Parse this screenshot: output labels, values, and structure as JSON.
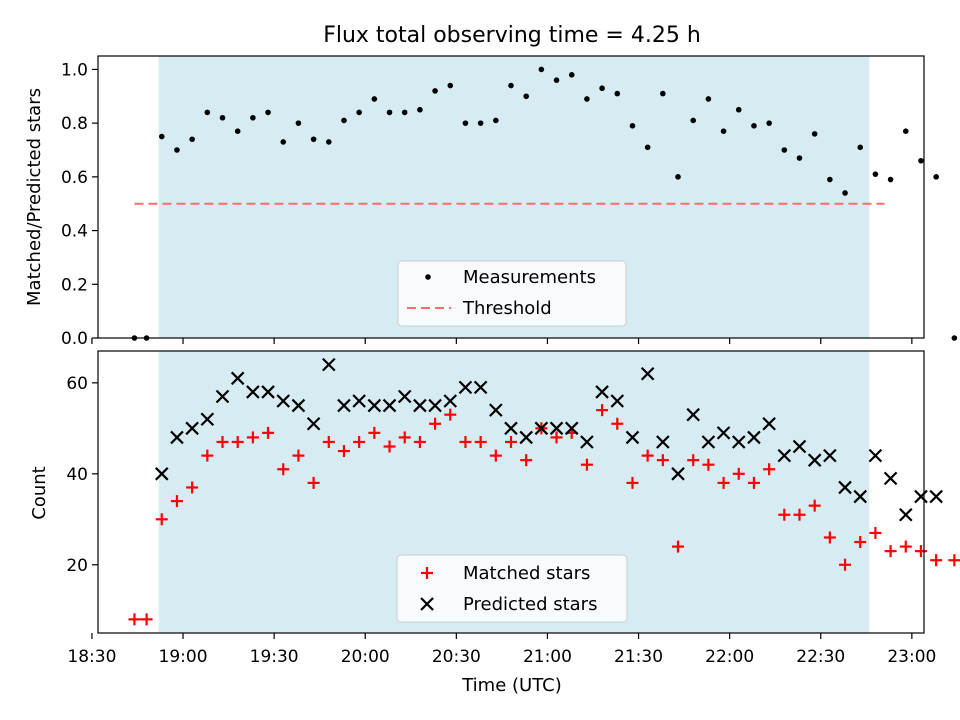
{
  "colors": {
    "shade": "#add8e6",
    "threshold": "#ff6b6b",
    "matched": "#ff0000",
    "predicted": "#000000",
    "measurement": "#000000"
  },
  "chart_data": [
    {
      "type": "scatter",
      "title": "Flux total observing time = 4.25 h",
      "ylabel": "Matched/Predicted stars",
      "xlabel": "",
      "ylim": [
        0,
        1.05
      ],
      "xlim_minutes": [
        1112,
        1384
      ],
      "yticks": [
        {
          "v": 0.0,
          "label": "0.0"
        },
        {
          "v": 0.2,
          "label": "0.2"
        },
        {
          "v": 0.4,
          "label": "0.4"
        },
        {
          "v": 0.6,
          "label": "0.6"
        },
        {
          "v": 0.8,
          "label": "0.8"
        },
        {
          "v": 1.0,
          "label": "1.0"
        }
      ],
      "shaded_region_minutes": [
        1132,
        1366
      ],
      "threshold": {
        "y": 0.5,
        "x_range_minutes": [
          1124,
          1371
        ]
      },
      "legend": {
        "position": "bottom-center",
        "entries": [
          "Measurements",
          "Threshold"
        ]
      },
      "series": [
        {
          "name": "Measurements",
          "points": [
            [
              1124,
              0.0
            ],
            [
              1128,
              0.0
            ],
            [
              1133,
              0.75
            ],
            [
              1138,
              0.7
            ],
            [
              1143,
              0.74
            ],
            [
              1148,
              0.84
            ],
            [
              1153,
              0.82
            ],
            [
              1158,
              0.77
            ],
            [
              1163,
              0.82
            ],
            [
              1168,
              0.84
            ],
            [
              1173,
              0.73
            ],
            [
              1178,
              0.8
            ],
            [
              1183,
              0.74
            ],
            [
              1188,
              0.73
            ],
            [
              1193,
              0.81
            ],
            [
              1198,
              0.84
            ],
            [
              1203,
              0.89
            ],
            [
              1208,
              0.84
            ],
            [
              1213,
              0.84
            ],
            [
              1218,
              0.85
            ],
            [
              1223,
              0.92
            ],
            [
              1228,
              0.94
            ],
            [
              1233,
              0.8
            ],
            [
              1238,
              0.8
            ],
            [
              1243,
              0.81
            ],
            [
              1248,
              0.94
            ],
            [
              1253,
              0.9
            ],
            [
              1258,
              1.0
            ],
            [
              1263,
              0.96
            ],
            [
              1268,
              0.98
            ],
            [
              1273,
              0.89
            ],
            [
              1278,
              0.93
            ],
            [
              1283,
              0.91
            ],
            [
              1288,
              0.79
            ],
            [
              1293,
              0.71
            ],
            [
              1298,
              0.91
            ],
            [
              1303,
              0.6
            ],
            [
              1308,
              0.81
            ],
            [
              1313,
              0.89
            ],
            [
              1318,
              0.77
            ],
            [
              1323,
              0.85
            ],
            [
              1328,
              0.79
            ],
            [
              1333,
              0.8
            ],
            [
              1338,
              0.7
            ],
            [
              1343,
              0.67
            ],
            [
              1348,
              0.76
            ],
            [
              1353,
              0.59
            ],
            [
              1358,
              0.54
            ],
            [
              1363,
              0.71
            ],
            [
              1368,
              0.61
            ],
            [
              1373,
              0.59
            ],
            [
              1378,
              0.77
            ],
            [
              1383,
              0.66
            ],
            [
              1388,
              0.6
            ],
            [
              1394,
              0.0
            ]
          ]
        }
      ]
    },
    {
      "type": "scatter",
      "title": "",
      "ylabel": "Count",
      "xlabel": "Time (UTC)",
      "ylim": [
        5,
        67
      ],
      "xlim_minutes": [
        1112,
        1384
      ],
      "yticks": [
        {
          "v": 20,
          "label": "20"
        },
        {
          "v": 40,
          "label": "40"
        },
        {
          "v": 60,
          "label": "60"
        }
      ],
      "xticks": [
        {
          "v": 1110,
          "label": "18:30"
        },
        {
          "v": 1140,
          "label": "19:00"
        },
        {
          "v": 1170,
          "label": "19:30"
        },
        {
          "v": 1200,
          "label": "20:00"
        },
        {
          "v": 1230,
          "label": "20:30"
        },
        {
          "v": 1260,
          "label": "21:00"
        },
        {
          "v": 1290,
          "label": "21:30"
        },
        {
          "v": 1320,
          "label": "22:00"
        },
        {
          "v": 1350,
          "label": "22:30"
        },
        {
          "v": 1380,
          "label": "23:00"
        }
      ],
      "shaded_region_minutes": [
        1132,
        1366
      ],
      "legend": {
        "position": "bottom-center",
        "entries": [
          "Matched stars",
          "Predicted stars"
        ]
      },
      "series": [
        {
          "name": "Matched stars",
          "marker": "plus",
          "points": [
            [
              1124,
              8
            ],
            [
              1128,
              8
            ],
            [
              1133,
              30
            ],
            [
              1138,
              34
            ],
            [
              1143,
              37
            ],
            [
              1148,
              44
            ],
            [
              1153,
              47
            ],
            [
              1158,
              47
            ],
            [
              1163,
              48
            ],
            [
              1168,
              49
            ],
            [
              1173,
              41
            ],
            [
              1178,
              44
            ],
            [
              1183,
              38
            ],
            [
              1188,
              47
            ],
            [
              1193,
              45
            ],
            [
              1198,
              47
            ],
            [
              1203,
              49
            ],
            [
              1208,
              46
            ],
            [
              1213,
              48
            ],
            [
              1218,
              47
            ],
            [
              1223,
              51
            ],
            [
              1228,
              53
            ],
            [
              1233,
              47
            ],
            [
              1238,
              47
            ],
            [
              1243,
              44
            ],
            [
              1248,
              47
            ],
            [
              1253,
              43
            ],
            [
              1258,
              50
            ],
            [
              1263,
              48
            ],
            [
              1268,
              49
            ],
            [
              1273,
              42
            ],
            [
              1278,
              54
            ],
            [
              1283,
              51
            ],
            [
              1288,
              38
            ],
            [
              1293,
              44
            ],
            [
              1298,
              43
            ],
            [
              1303,
              24
            ],
            [
              1308,
              43
            ],
            [
              1313,
              42
            ],
            [
              1318,
              38
            ],
            [
              1323,
              40
            ],
            [
              1328,
              38
            ],
            [
              1333,
              41
            ],
            [
              1338,
              31
            ],
            [
              1343,
              31
            ],
            [
              1348,
              33
            ],
            [
              1353,
              26
            ],
            [
              1358,
              20
            ],
            [
              1363,
              25
            ],
            [
              1368,
              27
            ],
            [
              1373,
              23
            ],
            [
              1378,
              24
            ],
            [
              1383,
              23
            ],
            [
              1388,
              21
            ],
            [
              1394,
              21
            ]
          ]
        },
        {
          "name": "Predicted stars",
          "marker": "x",
          "points": [
            [
              1133,
              40
            ],
            [
              1138,
              48
            ],
            [
              1143,
              50
            ],
            [
              1148,
              52
            ],
            [
              1153,
              57
            ],
            [
              1158,
              61
            ],
            [
              1163,
              58
            ],
            [
              1168,
              58
            ],
            [
              1173,
              56
            ],
            [
              1178,
              55
            ],
            [
              1183,
              51
            ],
            [
              1188,
              64
            ],
            [
              1193,
              55
            ],
            [
              1198,
              56
            ],
            [
              1203,
              55
            ],
            [
              1208,
              55
            ],
            [
              1213,
              57
            ],
            [
              1218,
              55
            ],
            [
              1223,
              55
            ],
            [
              1228,
              56
            ],
            [
              1233,
              59
            ],
            [
              1238,
              59
            ],
            [
              1243,
              54
            ],
            [
              1248,
              50
            ],
            [
              1253,
              48
            ],
            [
              1258,
              50
            ],
            [
              1263,
              50
            ],
            [
              1268,
              50
            ],
            [
              1273,
              47
            ],
            [
              1278,
              58
            ],
            [
              1283,
              56
            ],
            [
              1288,
              48
            ],
            [
              1293,
              62
            ],
            [
              1298,
              47
            ],
            [
              1303,
              40
            ],
            [
              1308,
              53
            ],
            [
              1313,
              47
            ],
            [
              1318,
              49
            ],
            [
              1323,
              47
            ],
            [
              1328,
              48
            ],
            [
              1333,
              51
            ],
            [
              1338,
              44
            ],
            [
              1343,
              46
            ],
            [
              1348,
              43
            ],
            [
              1353,
              44
            ],
            [
              1358,
              37
            ],
            [
              1363,
              35
            ],
            [
              1368,
              44
            ],
            [
              1373,
              39
            ],
            [
              1378,
              31
            ],
            [
              1383,
              35
            ],
            [
              1388,
              35
            ]
          ]
        }
      ]
    }
  ]
}
